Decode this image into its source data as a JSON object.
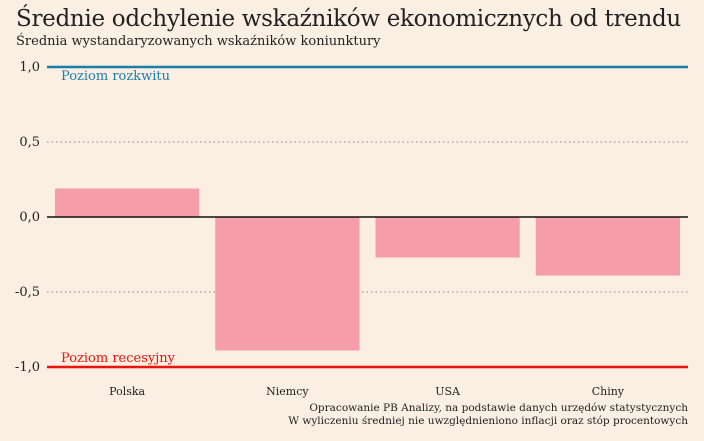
{
  "title": "Średnie odchylenie wskaźników ekonomicznych od trendu",
  "subtitle": "Średnia wystandaryzowanych wskaźników koniunktury",
  "source_lines": [
    "Opracowanie PB Analizy, na podstawie danych urzędów statystycznych",
    "W wyliczeniu średniej nie uwzględnieniono inflacji oraz stóp procentowych"
  ],
  "colors": {
    "bar": "#f59ea9",
    "upper_line": "#1a7fa8",
    "lower_line": "#e8150c",
    "zero_line": "#111111",
    "grid": "#8a8a8a",
    "background": "#fbeee2"
  },
  "chart_data": {
    "type": "bar",
    "categories": [
      "Polska",
      "Niemcy",
      "USA",
      "Chiny"
    ],
    "values": [
      0.19,
      -0.89,
      -0.27,
      -0.39
    ],
    "ylim": [
      -1.0,
      1.0
    ],
    "yticks": [
      1.0,
      0.5,
      0.0,
      -0.5,
      -1.0
    ],
    "ytick_labels": [
      "1,0",
      "0,5",
      "0,0",
      "-0,5",
      "-1,0"
    ],
    "grid": true,
    "reference_lines": [
      {
        "value": 1.0,
        "label": "Poziom rozkwitu"
      },
      {
        "value": -1.0,
        "label": "Poziom recesyjny"
      }
    ]
  }
}
